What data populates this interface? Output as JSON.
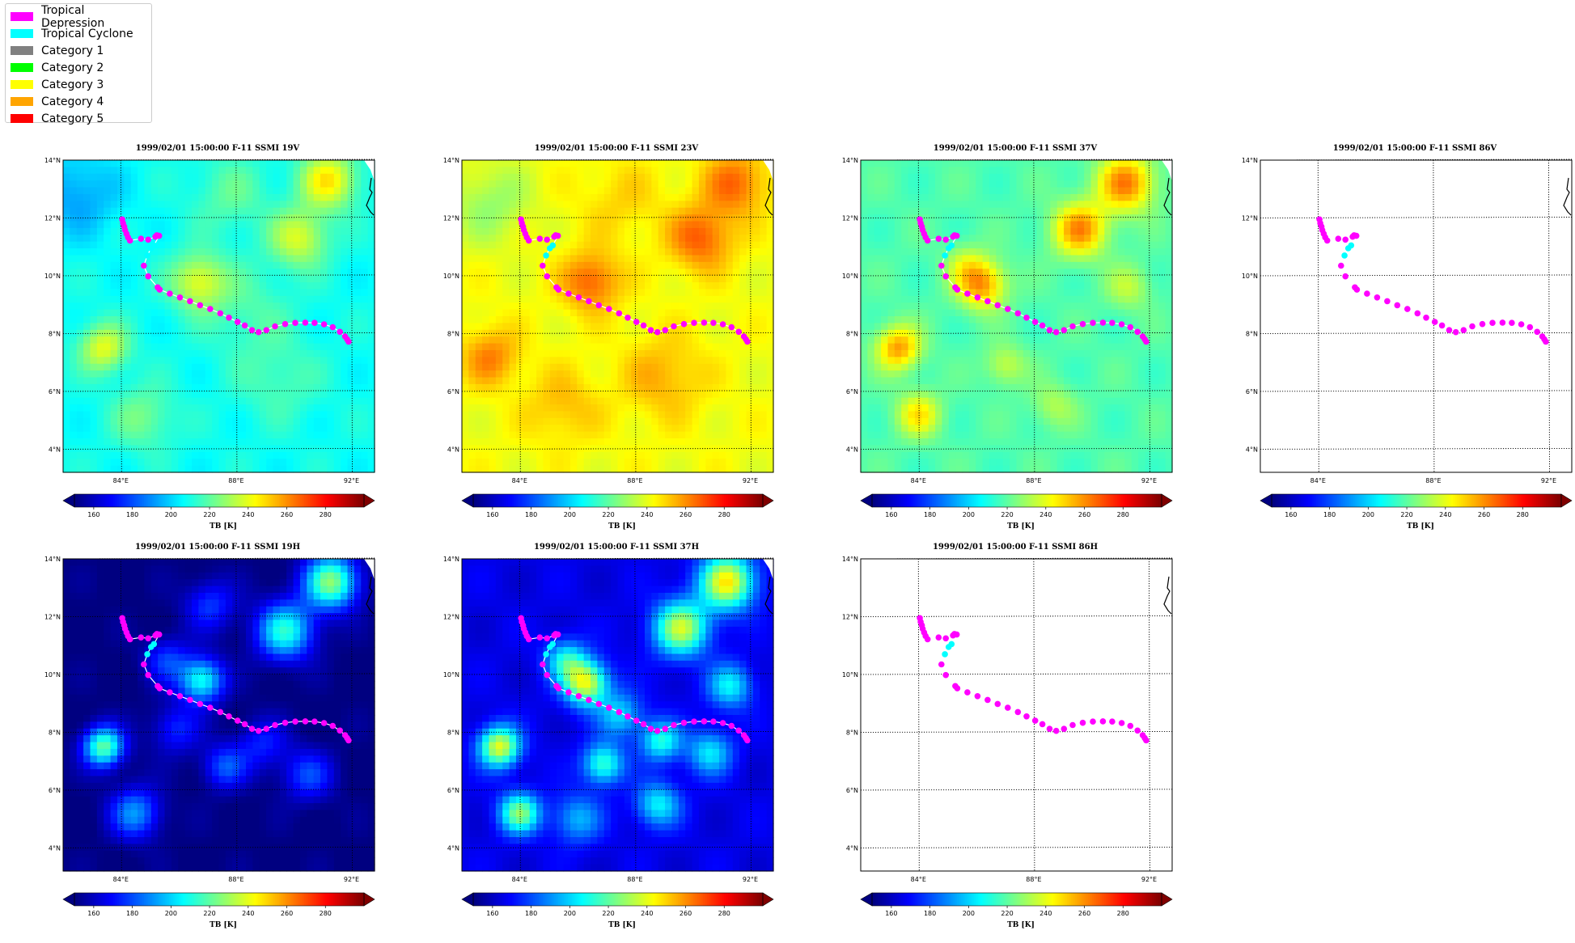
{
  "legend": {
    "items": [
      {
        "label": "Tropical Depression",
        "color": "#ff00ff"
      },
      {
        "label": "Tropical Cyclone",
        "color": "#00ffff"
      },
      {
        "label": "Category 1",
        "color": "#808080"
      },
      {
        "label": "Category 2",
        "color": "#00ff00"
      },
      {
        "label": "Category 3",
        "color": "#ffff00"
      },
      {
        "label": "Category 4",
        "color": "#ffa500"
      },
      {
        "label": "Category 5",
        "color": "#ff0000"
      }
    ]
  },
  "chart_data": [
    {
      "type": "heatmap",
      "title": "1999/02/01 15:00:00  F-11 SSMI 19V",
      "field": "19V"
    },
    {
      "type": "heatmap",
      "title": "1999/02/01 15:00:00  F-11 SSMI 23V",
      "field": "23V"
    },
    {
      "type": "heatmap",
      "title": "1999/02/01 15:00:00  F-11 SSMI 37V",
      "field": "37V"
    },
    {
      "type": "heatmap",
      "title": "1999/02/01 15:00:00  F-11 SSMI 86V",
      "field": "none"
    },
    {
      "type": "heatmap",
      "title": "1999/02/01 15:00:00  F-11 SSMI 19H",
      "field": "19H"
    },
    {
      "type": "heatmap",
      "title": "1999/02/01 15:00:00  F-11 SSMI 37H",
      "field": "37H"
    },
    {
      "type": "heatmap",
      "title": "1999/02/01 15:00:00  F-11 SSMI 86H",
      "field": "none"
    }
  ],
  "shared": {
    "colorbar": {
      "label": "TB [K]",
      "ticks": [
        160,
        180,
        200,
        220,
        240,
        260,
        280
      ],
      "range": [
        150,
        300
      ],
      "colormap": "jet"
    },
    "xaxis": {
      "ticks": [
        84,
        88,
        92
      ],
      "labels": [
        "84°E",
        "88°E",
        "92°E"
      ],
      "range": [
        82,
        92.8
      ]
    },
    "yaxis": {
      "ticks": [
        4,
        6,
        8,
        10,
        12,
        14
      ],
      "labels": [
        "4°N",
        "6°N",
        "8°N",
        "10°N",
        "12°N",
        "14°N"
      ],
      "range": [
        3.2,
        14
      ]
    },
    "track": {
      "points": [
        {
          "lon": 84.05,
          "lat": 11.95,
          "cat": "TD"
        },
        {
          "lon": 84.08,
          "lat": 11.82,
          "cat": "TD"
        },
        {
          "lon": 84.12,
          "lat": 11.7,
          "cat": "TD"
        },
        {
          "lon": 84.15,
          "lat": 11.58,
          "cat": "TD"
        },
        {
          "lon": 84.2,
          "lat": 11.45,
          "cat": "TD"
        },
        {
          "lon": 84.25,
          "lat": 11.33,
          "cat": "TD"
        },
        {
          "lon": 84.32,
          "lat": 11.22,
          "cat": "TD"
        },
        {
          "lon": 84.7,
          "lat": 11.28,
          "cat": "TD"
        },
        {
          "lon": 84.95,
          "lat": 11.25,
          "cat": "TD"
        },
        {
          "lon": 85.2,
          "lat": 11.35,
          "cat": "TD"
        },
        {
          "lon": 85.25,
          "lat": 11.4,
          "cat": "TD"
        },
        {
          "lon": 85.33,
          "lat": 11.38,
          "cat": "TD"
        },
        {
          "lon": 85.15,
          "lat": 11.05,
          "cat": "TC"
        },
        {
          "lon": 85.05,
          "lat": 10.95,
          "cat": "TC"
        },
        {
          "lon": 84.92,
          "lat": 10.7,
          "cat": "TC"
        },
        {
          "lon": 84.8,
          "lat": 10.35,
          "cat": "TD"
        },
        {
          "lon": 84.95,
          "lat": 9.98,
          "cat": "TD"
        },
        {
          "lon": 85.28,
          "lat": 9.6,
          "cat": "TD"
        },
        {
          "lon": 85.35,
          "lat": 9.52,
          "cat": "TD"
        },
        {
          "lon": 85.7,
          "lat": 9.38,
          "cat": "TD"
        },
        {
          "lon": 86.05,
          "lat": 9.25,
          "cat": "TD"
        },
        {
          "lon": 86.4,
          "lat": 9.12,
          "cat": "TD"
        },
        {
          "lon": 86.75,
          "lat": 8.98,
          "cat": "TD"
        },
        {
          "lon": 87.1,
          "lat": 8.85,
          "cat": "TD"
        },
        {
          "lon": 87.45,
          "lat": 8.7,
          "cat": "TD"
        },
        {
          "lon": 87.75,
          "lat": 8.55,
          "cat": "TD"
        },
        {
          "lon": 88.05,
          "lat": 8.4,
          "cat": "TD"
        },
        {
          "lon": 88.3,
          "lat": 8.28,
          "cat": "TD"
        },
        {
          "lon": 88.55,
          "lat": 8.12,
          "cat": "TD"
        },
        {
          "lon": 88.78,
          "lat": 8.05,
          "cat": "TD"
        },
        {
          "lon": 89.05,
          "lat": 8.12,
          "cat": "TD"
        },
        {
          "lon": 89.35,
          "lat": 8.25,
          "cat": "TD"
        },
        {
          "lon": 89.7,
          "lat": 8.33,
          "cat": "TD"
        },
        {
          "lon": 90.05,
          "lat": 8.37,
          "cat": "TD"
        },
        {
          "lon": 90.4,
          "lat": 8.38,
          "cat": "TD"
        },
        {
          "lon": 90.72,
          "lat": 8.37,
          "cat": "TD"
        },
        {
          "lon": 91.05,
          "lat": 8.32,
          "cat": "TD"
        },
        {
          "lon": 91.35,
          "lat": 8.22,
          "cat": "TD"
        },
        {
          "lon": 91.6,
          "lat": 8.06,
          "cat": "TD"
        },
        {
          "lon": 91.78,
          "lat": 7.9,
          "cat": "TD"
        },
        {
          "lon": 91.85,
          "lat": 7.8,
          "cat": "TD"
        },
        {
          "lon": 91.9,
          "lat": 7.72,
          "cat": "TD"
        }
      ]
    }
  }
}
